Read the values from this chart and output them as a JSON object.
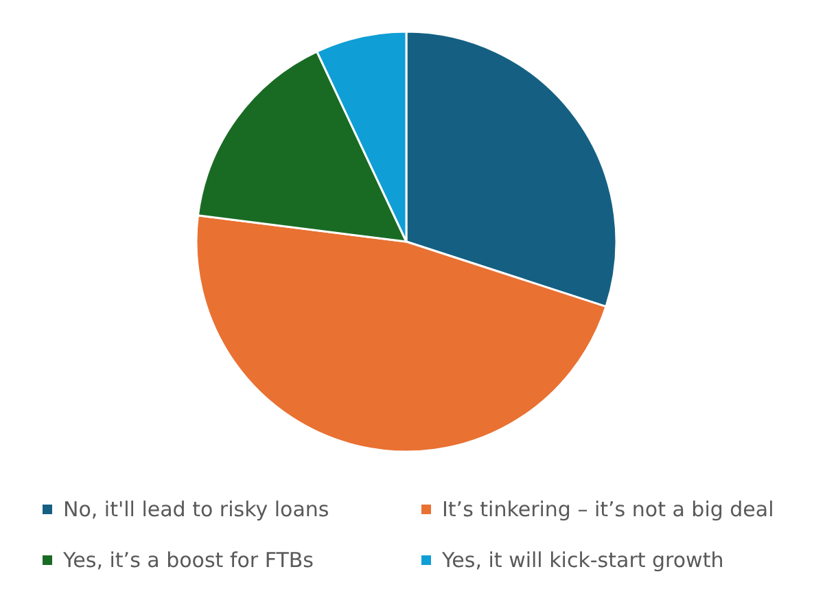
{
  "chart_data": {
    "type": "pie",
    "categories": [
      "No, it'll lead to risky loans",
      "It’s tinkering – it’s not a big deal",
      "Yes, it’s a boost for FTBs",
      "Yes, it will kick-start growth"
    ],
    "values": [
      30,
      47,
      16,
      7
    ],
    "colors": [
      "#156082",
      "#e97132",
      "#196b24",
      "#0f9ed5"
    ],
    "legend": "bottom"
  }
}
